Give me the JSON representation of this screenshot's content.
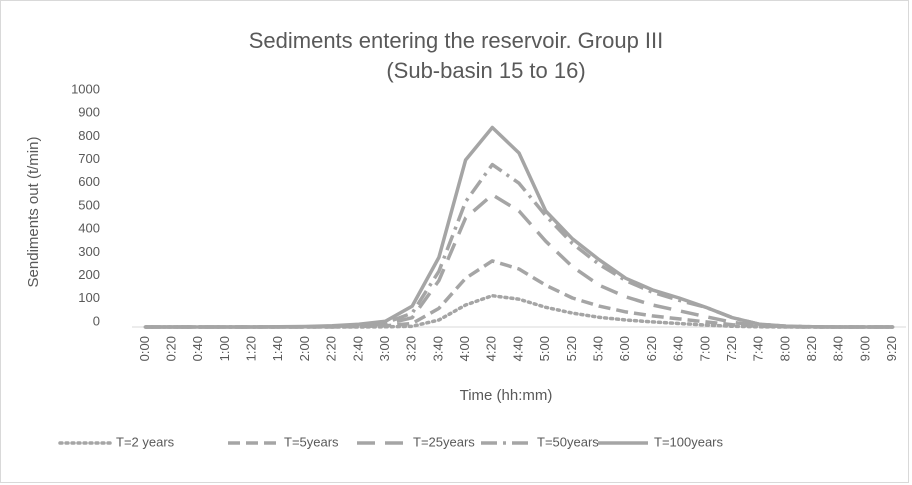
{
  "chart_data": {
    "type": "line",
    "title": [
      "Sediments entering the reservoir. Group III",
      "(Sub-basin 15 to 16)"
    ],
    "x_label": "Time (hh:mm)",
    "y_label": "Sendiments out (t/min)",
    "categories": [
      "0:00",
      "0:20",
      "0:40",
      "1:00",
      "1:20",
      "1:40",
      "2:00",
      "2:20",
      "2:40",
      "3:00",
      "3:20",
      "3:40",
      "4:00",
      "4:20",
      "4:40",
      "5:00",
      "5:20",
      "5:40",
      "6:00",
      "6:20",
      "6:40",
      "7:00",
      "7:20",
      "7:40",
      "8:00",
      "8:20",
      "8:40",
      "9:00",
      "9:20"
    ],
    "ylim": [
      0,
      1000
    ],
    "yticks": [
      0,
      100,
      200,
      300,
      400,
      500,
      600,
      700,
      800,
      900,
      1000
    ],
    "grid": false,
    "legend": "bottom",
    "series": [
      {
        "name": "T=2 years",
        "color": "#a5a5a5",
        "dash": "dot",
        "values": [
          0,
          0,
          0,
          0,
          0,
          0,
          0,
          0,
          0,
          1,
          3,
          30,
          95,
          135,
          120,
          85,
          60,
          42,
          30,
          22,
          15,
          8,
          3,
          1,
          0,
          0,
          0,
          0,
          0
        ]
      },
      {
        "name": "T=5years",
        "color": "#a5a5a5",
        "dash": "dash",
        "values": [
          0,
          0,
          0,
          0,
          0,
          0,
          0,
          0,
          2,
          5,
          15,
          80,
          210,
          285,
          250,
          180,
          125,
          90,
          65,
          48,
          35,
          22,
          10,
          3,
          1,
          0,
          0,
          0,
          0
        ]
      },
      {
        "name": "T=25years",
        "color": "#a5a5a5",
        "dash": "long-dash",
        "values": [
          0,
          0,
          0,
          0,
          0,
          0,
          0,
          2,
          5,
          12,
          40,
          200,
          470,
          570,
          500,
          370,
          260,
          180,
          130,
          95,
          70,
          45,
          20,
          6,
          2,
          0,
          0,
          0,
          0
        ]
      },
      {
        "name": "T=50years",
        "color": "#a5a5a5",
        "dash": "dash-dot",
        "values": [
          0,
          0,
          0,
          0,
          0,
          0,
          1,
          3,
          8,
          18,
          60,
          240,
          540,
          700,
          620,
          480,
          360,
          270,
          200,
          150,
          115,
          85,
          40,
          12,
          4,
          1,
          0,
          0,
          0
        ]
      },
      {
        "name": "T=100years",
        "color": "#a5a5a5",
        "dash": "solid",
        "values": [
          0,
          0,
          0,
          0,
          0,
          1,
          2,
          5,
          12,
          25,
          90,
          300,
          720,
          860,
          750,
          500,
          380,
          290,
          210,
          160,
          125,
          85,
          40,
          12,
          4,
          1,
          0,
          0,
          0
        ]
      }
    ]
  }
}
